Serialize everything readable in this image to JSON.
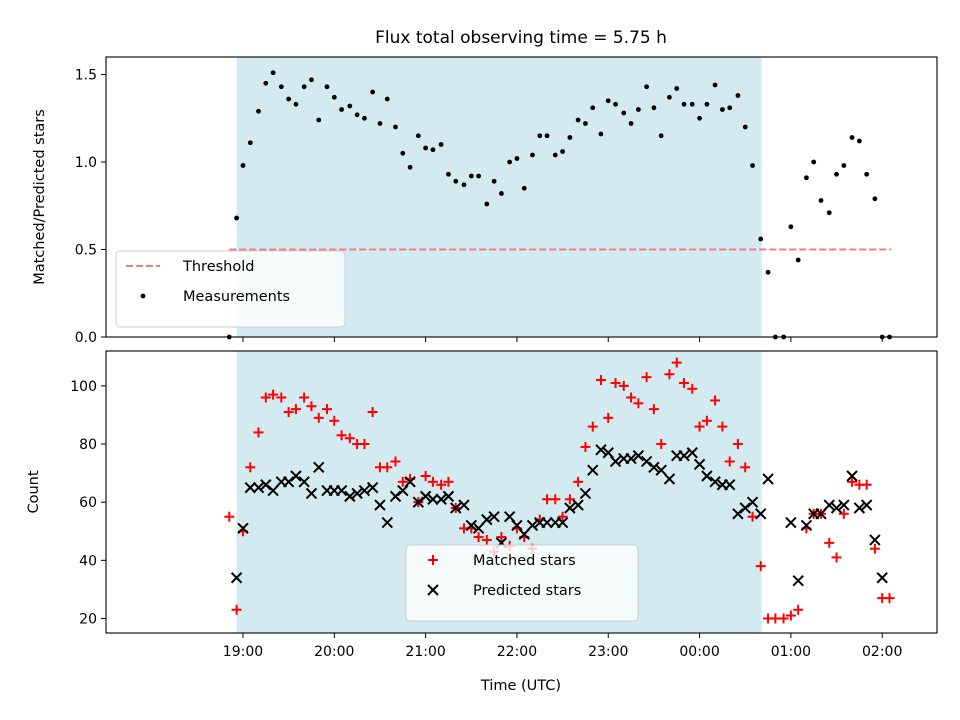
{
  "chart_data": {
    "title": "Flux total observing time = 5.75 h",
    "xlabel": "Time (UTC)",
    "x_range_hours": [
      17.5,
      26.6
    ],
    "x_ticks": [
      {
        "value": 19,
        "label": "19:00"
      },
      {
        "value": 20,
        "label": "20:00"
      },
      {
        "value": 21,
        "label": "21:00"
      },
      {
        "value": 22,
        "label": "22:00"
      },
      {
        "value": 23,
        "label": "23:00"
      },
      {
        "value": 24,
        "label": "00:00"
      },
      {
        "value": 25,
        "label": "01:00"
      },
      {
        "value": 26,
        "label": "02:00"
      }
    ],
    "shaded_span_hours": [
      18.93,
      24.68
    ],
    "shade_color": "#d3ebf0",
    "panels": [
      {
        "type": "scatter",
        "ylabel": "Matched/Predicted stars",
        "ylim": [
          0,
          1.6
        ],
        "yticks": [
          0.0,
          0.5,
          1.0,
          1.5
        ],
        "ytick_labels": [
          "0.0",
          "0.5",
          "1.0",
          "1.5"
        ],
        "legend_position": "lower-left",
        "threshold": {
          "name": "Threshold",
          "y": 0.5,
          "x_range": [
            18.85,
            26.1
          ],
          "color": "#f08080"
        },
        "series": [
          {
            "name": "Measurements",
            "marker": "dot",
            "color": "#000000",
            "x": [
              18.85,
              18.93,
              19.0,
              19.08,
              19.17,
              19.25,
              19.33,
              19.42,
              19.5,
              19.58,
              19.67,
              19.75,
              19.83,
              19.92,
              20.0,
              20.08,
              20.17,
              20.25,
              20.33,
              20.42,
              20.5,
              20.58,
              20.67,
              20.75,
              20.83,
              20.92,
              21.0,
              21.08,
              21.17,
              21.25,
              21.33,
              21.42,
              21.5,
              21.58,
              21.67,
              21.75,
              21.83,
              21.92,
              22.0,
              22.08,
              22.17,
              22.25,
              22.33,
              22.42,
              22.5,
              22.58,
              22.67,
              22.75,
              22.83,
              22.92,
              23.0,
              23.08,
              23.17,
              23.25,
              23.33,
              23.42,
              23.5,
              23.58,
              23.67,
              23.75,
              23.83,
              23.92,
              24.0,
              24.08,
              24.17,
              24.25,
              24.33,
              24.42,
              24.5,
              24.58,
              24.67,
              24.75,
              24.83,
              24.92,
              25.0,
              25.08,
              25.17,
              25.25,
              25.33,
              25.42,
              25.5,
              25.58,
              25.67,
              25.75,
              25.83,
              25.92,
              26.0,
              26.08
            ],
            "y": [
              0.0,
              0.68,
              0.98,
              1.11,
              1.29,
              1.45,
              1.51,
              1.43,
              1.36,
              1.33,
              1.43,
              1.47,
              1.24,
              1.43,
              1.37,
              1.3,
              1.32,
              1.27,
              1.25,
              1.4,
              1.22,
              1.36,
              1.2,
              1.05,
              0.97,
              1.15,
              1.08,
              1.07,
              1.1,
              0.93,
              0.89,
              0.87,
              0.92,
              0.92,
              0.76,
              0.89,
              0.82,
              1.0,
              1.02,
              0.85,
              1.04,
              1.15,
              1.15,
              1.04,
              1.06,
              1.14,
              1.24,
              1.22,
              1.31,
              1.16,
              1.35,
              1.33,
              1.28,
              1.22,
              1.3,
              1.43,
              1.31,
              1.15,
              1.37,
              1.42,
              1.33,
              1.33,
              1.25,
              1.33,
              1.44,
              1.3,
              1.31,
              1.38,
              1.2,
              0.98,
              0.56,
              0.37,
              0.0,
              0.0,
              0.63,
              0.44,
              0.91,
              1.0,
              0.78,
              0.71,
              0.93,
              0.98,
              1.14,
              1.12,
              0.93,
              0.79,
              0.0,
              0.0
            ]
          }
        ]
      },
      {
        "type": "scatter",
        "ylabel": "Count",
        "ylim": [
          15,
          112
        ],
        "yticks": [
          20,
          40,
          60,
          80,
          100
        ],
        "ytick_labels": [
          "20",
          "40",
          "60",
          "80",
          "100"
        ],
        "legend_position": "lower-center",
        "series": [
          {
            "name": "Matched stars",
            "marker": "plus",
            "color": "#ff0000",
            "x": [
              18.85,
              18.93,
              19.0,
              19.08,
              19.17,
              19.25,
              19.33,
              19.42,
              19.5,
              19.58,
              19.67,
              19.75,
              19.83,
              19.92,
              20.0,
              20.08,
              20.17,
              20.25,
              20.33,
              20.42,
              20.5,
              20.58,
              20.67,
              20.75,
              20.83,
              20.92,
              21.0,
              21.08,
              21.17,
              21.25,
              21.33,
              21.42,
              21.5,
              21.58,
              21.67,
              21.75,
              21.83,
              21.92,
              22.0,
              22.08,
              22.17,
              22.25,
              22.33,
              22.42,
              22.5,
              22.58,
              22.67,
              22.75,
              22.83,
              22.92,
              23.0,
              23.08,
              23.17,
              23.25,
              23.33,
              23.42,
              23.5,
              23.58,
              23.67,
              23.75,
              23.83,
              23.92,
              24.0,
              24.08,
              24.17,
              24.25,
              24.33,
              24.42,
              24.5,
              24.58,
              24.67,
              24.75,
              24.83,
              24.92,
              25.0,
              25.08,
              25.17,
              25.25,
              25.33,
              25.42,
              25.5,
              25.58,
              25.67,
              25.75,
              25.83,
              25.92,
              26.0,
              26.08
            ],
            "y": [
              55,
              23,
              50,
              72,
              84,
              96,
              97,
              96,
              91,
              92,
              96,
              93,
              89,
              92,
              88,
              83,
              82,
              80,
              80,
              91,
              72,
              72,
              74,
              67,
              68,
              60,
              69,
              67,
              66,
              67,
              58,
              51,
              51,
              48,
              47,
              43,
              48,
              45,
              51,
              48,
              44,
              54,
              61,
              61,
              55,
              61,
              67,
              79,
              86,
              102,
              89,
              101,
              100,
              96,
              94,
              103,
              92,
              80,
              104,
              108,
              101,
              99,
              86,
              88,
              95,
              86,
              74,
              80,
              72,
              55,
              38,
              20,
              20,
              20,
              21,
              23,
              51,
              56,
              56,
              46,
              41,
              56,
              67,
              66,
              66,
              44,
              27,
              27
            ]
          },
          {
            "name": "Predicted stars",
            "marker": "x",
            "color": "#000000",
            "x": [
              18.93,
              19.0,
              19.08,
              19.17,
              19.25,
              19.33,
              19.42,
              19.5,
              19.58,
              19.67,
              19.75,
              19.83,
              19.92,
              20.0,
              20.08,
              20.17,
              20.25,
              20.33,
              20.42,
              20.5,
              20.58,
              20.67,
              20.75,
              20.83,
              20.92,
              21.0,
              21.08,
              21.17,
              21.25,
              21.33,
              21.42,
              21.5,
              21.58,
              21.67,
              21.75,
              21.83,
              21.92,
              22.0,
              22.08,
              22.17,
              22.25,
              22.33,
              22.42,
              22.5,
              22.58,
              22.67,
              22.75,
              22.83,
              22.92,
              23.0,
              23.08,
              23.17,
              23.25,
              23.33,
              23.42,
              23.5,
              23.58,
              23.67,
              23.75,
              23.83,
              23.92,
              24.0,
              24.08,
              24.17,
              24.25,
              24.33,
              24.42,
              24.5,
              24.58,
              24.67,
              24.75,
              25.0,
              25.08,
              25.17,
              25.25,
              25.33,
              25.42,
              25.5,
              25.58,
              25.67,
              25.75,
              25.83,
              25.92,
              26.0
            ],
            "y": [
              34,
              51,
              65,
              65,
              66,
              64,
              67,
              67,
              69,
              67,
              63,
              72,
              64,
              64,
              64,
              62,
              63,
              64,
              65,
              59,
              53,
              62,
              64,
              67,
              60,
              62,
              61,
              61,
              62,
              58,
              59,
              52,
              51,
              54,
              55,
              46,
              55,
              52,
              49,
              52,
              53,
              53,
              53,
              53,
              58,
              59,
              63,
              71,
              78,
              77,
              74,
              75,
              75,
              76,
              74,
              72,
              71,
              68,
              76,
              76,
              77,
              73,
              69,
              67,
              66,
              66,
              56,
              58,
              60,
              56,
              68,
              53,
              33,
              52,
              56,
              56,
              59,
              58,
              59,
              69,
              58,
              59,
              47,
              34
            ]
          }
        ]
      }
    ]
  }
}
